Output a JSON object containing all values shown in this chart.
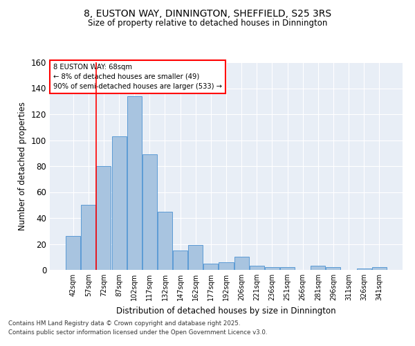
{
  "title_line1": "8, EUSTON WAY, DINNINGTON, SHEFFIELD, S25 3RS",
  "title_line2": "Size of property relative to detached houses in Dinnington",
  "xlabel": "Distribution of detached houses by size in Dinnington",
  "ylabel": "Number of detached properties",
  "categories": [
    "42sqm",
    "57sqm",
    "72sqm",
    "87sqm",
    "102sqm",
    "117sqm",
    "132sqm",
    "147sqm",
    "162sqm",
    "177sqm",
    "192sqm",
    "206sqm",
    "221sqm",
    "236sqm",
    "251sqm",
    "266sqm",
    "281sqm",
    "296sqm",
    "311sqm",
    "326sqm",
    "341sqm"
  ],
  "values": [
    26,
    50,
    80,
    103,
    134,
    89,
    45,
    15,
    19,
    5,
    6,
    10,
    3,
    2,
    2,
    0,
    3,
    2,
    0,
    1,
    2
  ],
  "bar_color": "#a8c4e0",
  "bar_edge_color": "#5b9bd5",
  "vline_x": 1.5,
  "vline_color": "red",
  "annotation_text_line1": "8 EUSTON WAY: 68sqm",
  "annotation_text_line2": "← 8% of detached houses are smaller (49)",
  "annotation_text_line3": "90% of semi-detached houses are larger (533) →",
  "annotation_box_color": "red",
  "ylim": [
    0,
    160
  ],
  "yticks": [
    0,
    20,
    40,
    60,
    80,
    100,
    120,
    140,
    160
  ],
  "background_color": "#e8eef6",
  "grid_color": "white",
  "footer_line1": "Contains HM Land Registry data © Crown copyright and database right 2025.",
  "footer_line2": "Contains public sector information licensed under the Open Government Licence v3.0."
}
